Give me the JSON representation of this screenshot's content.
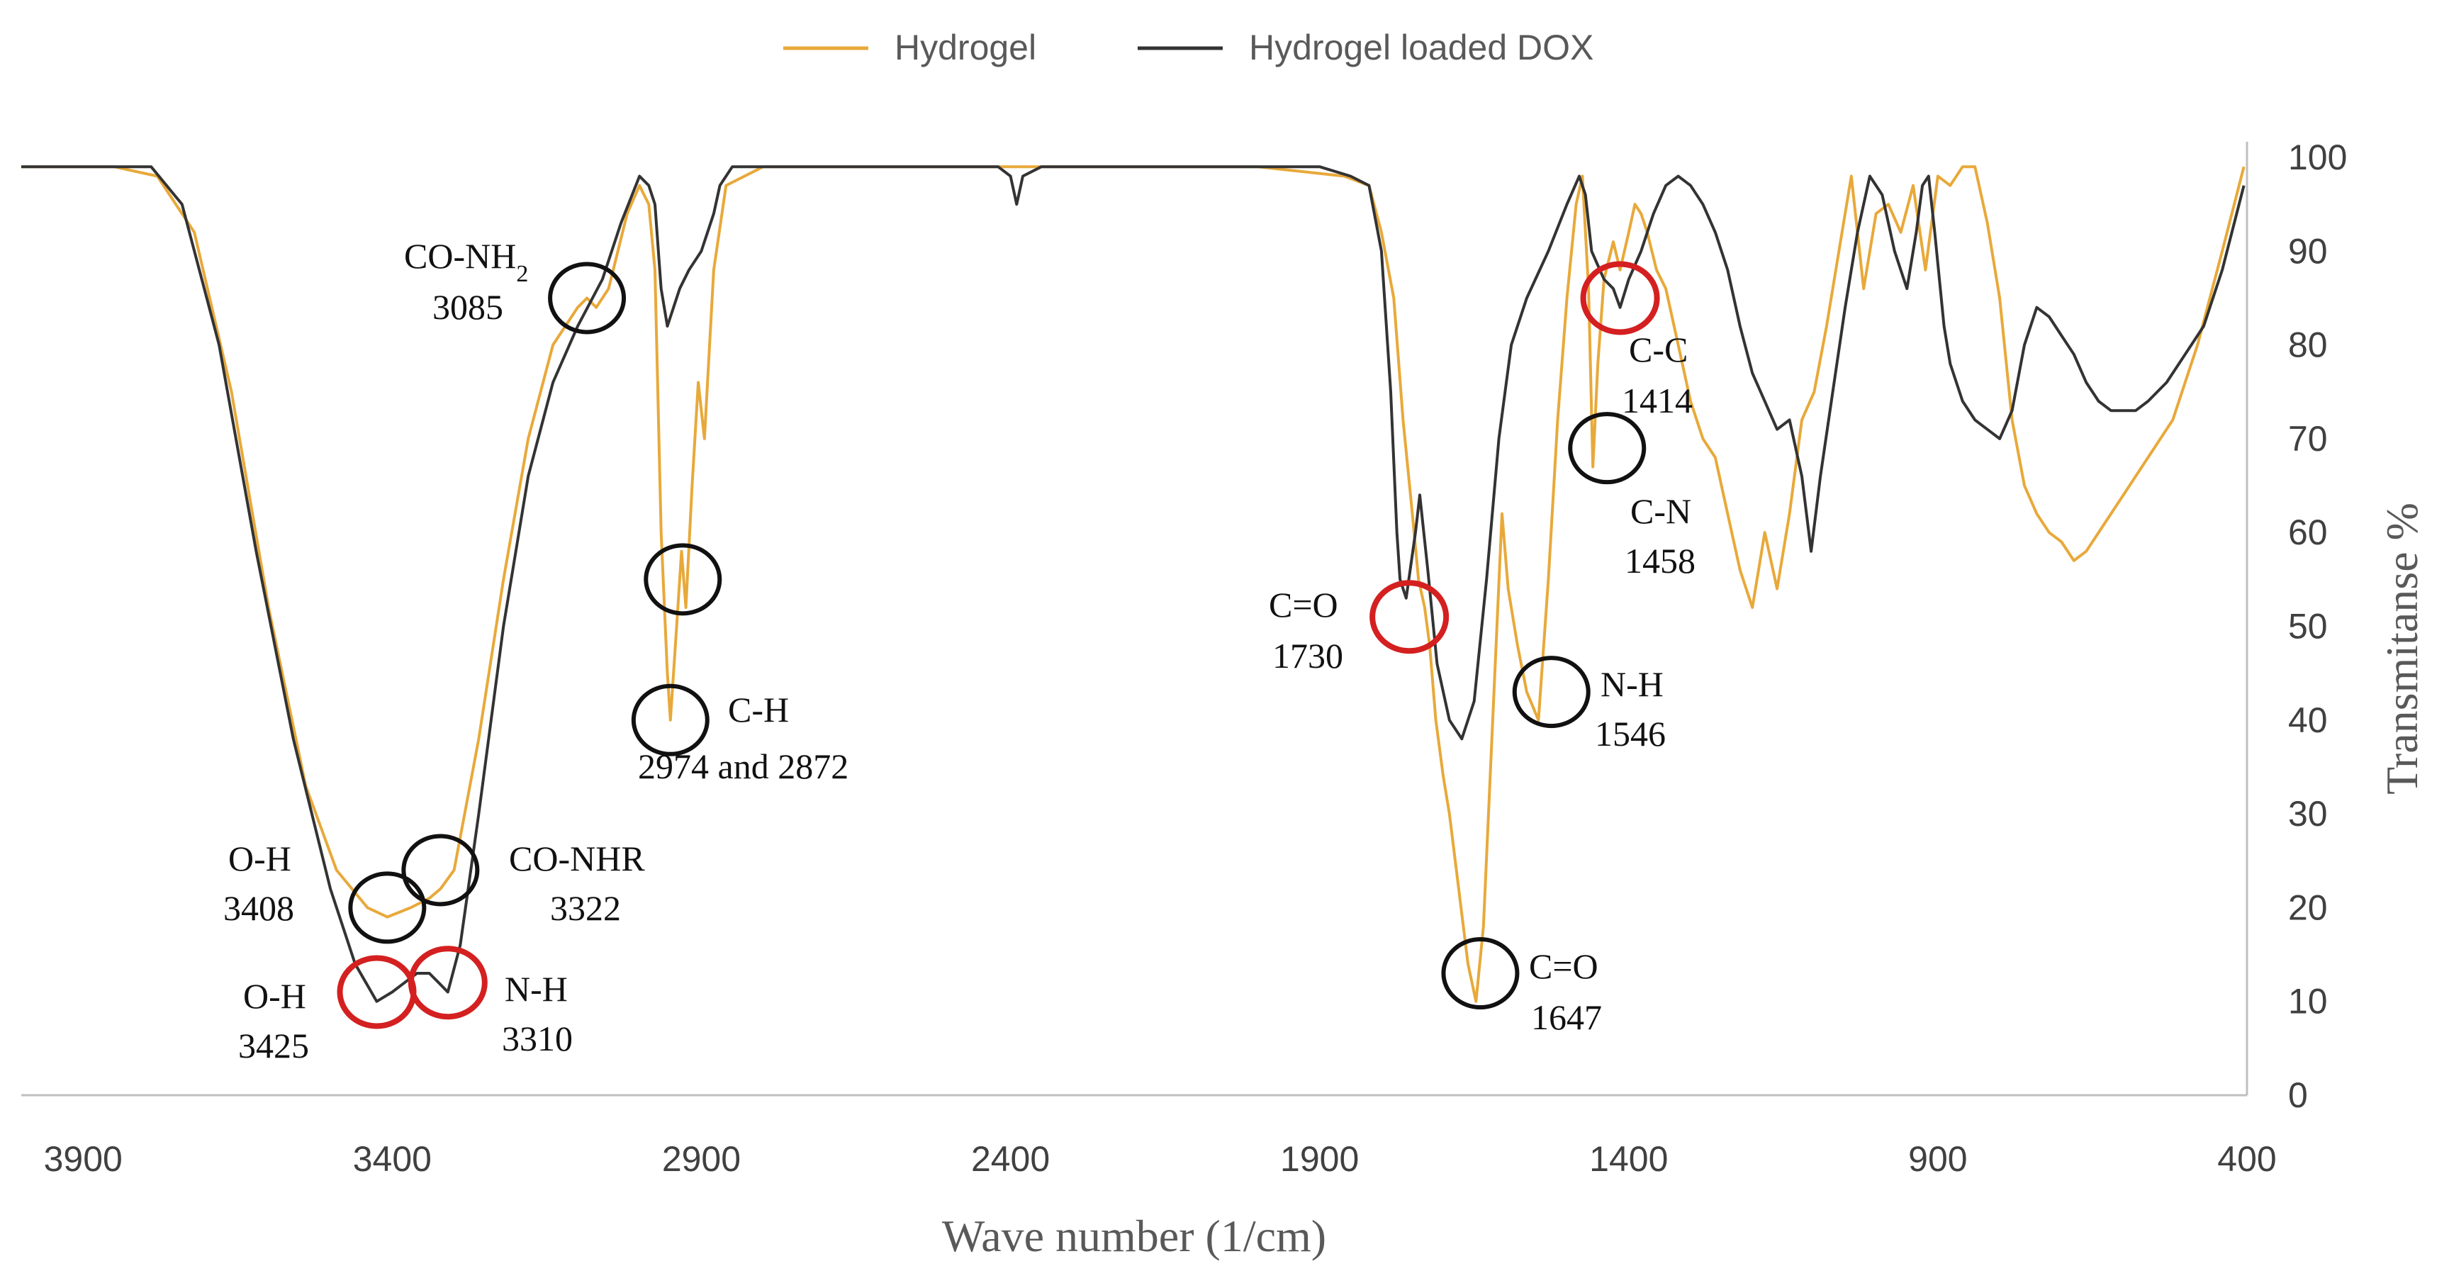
{
  "chart_data": {
    "type": "line",
    "title": "",
    "xlabel": "Wave number (1/cm)",
    "ylabel": "Transmitanse %",
    "xlim": [
      4000,
      400
    ],
    "ylim": [
      0,
      100
    ],
    "x_reversed": true,
    "x_ticks": [
      "3900",
      "3400",
      "2900",
      "2400",
      "1900",
      "1400",
      "900",
      "400"
    ],
    "y_ticks": [
      "0",
      "10",
      "20",
      "30",
      "40",
      "50",
      "60",
      "70",
      "80",
      "90",
      "100"
    ],
    "grid": false,
    "legend_position": "top",
    "colors": {
      "Hydrogel": "#E8A93A",
      "Hydrogel loaded DOX": "#333333",
      "red_circle": "#D42020",
      "black_circle": "#111111"
    },
    "series": [
      {
        "name": "Hydrogel",
        "points": [
          [
            4000,
            99
          ],
          [
            3850,
            99
          ],
          [
            3780,
            98
          ],
          [
            3720,
            92
          ],
          [
            3660,
            75
          ],
          [
            3600,
            52
          ],
          [
            3540,
            33
          ],
          [
            3490,
            24
          ],
          [
            3440,
            20
          ],
          [
            3408,
            19
          ],
          [
            3370,
            20
          ],
          [
            3340,
            21
          ],
          [
            3322,
            22
          ],
          [
            3300,
            24
          ],
          [
            3260,
            38
          ],
          [
            3220,
            55
          ],
          [
            3180,
            70
          ],
          [
            3140,
            80
          ],
          [
            3100,
            84
          ],
          [
            3085,
            85
          ],
          [
            3070,
            84
          ],
          [
            3050,
            86
          ],
          [
            3020,
            94
          ],
          [
            3000,
            97
          ],
          [
            2985,
            95
          ],
          [
            2975,
            88
          ],
          [
            2965,
            60
          ],
          [
            2955,
            45
          ],
          [
            2950,
            40
          ],
          [
            2940,
            50
          ],
          [
            2932,
            58
          ],
          [
            2925,
            52
          ],
          [
            2915,
            65
          ],
          [
            2905,
            76
          ],
          [
            2895,
            70
          ],
          [
            2880,
            88
          ],
          [
            2860,
            97
          ],
          [
            2800,
            99
          ],
          [
            2600,
            99
          ],
          [
            2400,
            99
          ],
          [
            2200,
            99
          ],
          [
            2000,
            99
          ],
          [
            1860,
            98
          ],
          [
            1820,
            97
          ],
          [
            1800,
            92
          ],
          [
            1780,
            85
          ],
          [
            1765,
            72
          ],
          [
            1750,
            62
          ],
          [
            1740,
            55
          ],
          [
            1730,
            52
          ],
          [
            1722,
            48
          ],
          [
            1712,
            40
          ],
          [
            1700,
            34
          ],
          [
            1690,
            30
          ],
          [
            1675,
            22
          ],
          [
            1660,
            14
          ],
          [
            1647,
            10
          ],
          [
            1635,
            18
          ],
          [
            1620,
            40
          ],
          [
            1605,
            62
          ],
          [
            1595,
            54
          ],
          [
            1580,
            48
          ],
          [
            1565,
            43
          ],
          [
            1546,
            40
          ],
          [
            1530,
            55
          ],
          [
            1515,
            72
          ],
          [
            1500,
            85
          ],
          [
            1485,
            95
          ],
          [
            1475,
            98
          ],
          [
            1465,
            86
          ],
          [
            1458,
            67
          ],
          [
            1450,
            78
          ],
          [
            1440,
            87
          ],
          [
            1425,
            91
          ],
          [
            1414,
            88
          ],
          [
            1400,
            92
          ],
          [
            1390,
            95
          ],
          [
            1380,
            94
          ],
          [
            1370,
            92
          ],
          [
            1355,
            88
          ],
          [
            1340,
            86
          ],
          [
            1320,
            80
          ],
          [
            1300,
            74
          ],
          [
            1280,
            70
          ],
          [
            1260,
            68
          ],
          [
            1240,
            62
          ],
          [
            1220,
            56
          ],
          [
            1200,
            52
          ],
          [
            1180,
            60
          ],
          [
            1160,
            54
          ],
          [
            1140,
            62
          ],
          [
            1120,
            72
          ],
          [
            1100,
            75
          ],
          [
            1080,
            82
          ],
          [
            1060,
            90
          ],
          [
            1040,
            98
          ],
          [
            1020,
            86
          ],
          [
            1000,
            94
          ],
          [
            980,
            95
          ],
          [
            960,
            92
          ],
          [
            940,
            97
          ],
          [
            920,
            88
          ],
          [
            900,
            98
          ],
          [
            880,
            97
          ],
          [
            860,
            99
          ],
          [
            840,
            99
          ],
          [
            820,
            93
          ],
          [
            800,
            85
          ],
          [
            780,
            72
          ],
          [
            760,
            65
          ],
          [
            740,
            62
          ],
          [
            720,
            60
          ],
          [
            700,
            59
          ],
          [
            680,
            57
          ],
          [
            660,
            58
          ],
          [
            630,
            61
          ],
          [
            600,
            64
          ],
          [
            560,
            68
          ],
          [
            520,
            72
          ],
          [
            480,
            80
          ],
          [
            440,
            90
          ],
          [
            405,
            99
          ]
        ]
      },
      {
        "name": "Hydrogel loaded DOX",
        "points": [
          [
            4000,
            99
          ],
          [
            3850,
            99
          ],
          [
            3790,
            99
          ],
          [
            3740,
            95
          ],
          [
            3680,
            80
          ],
          [
            3620,
            58
          ],
          [
            3560,
            38
          ],
          [
            3500,
            22
          ],
          [
            3460,
            14
          ],
          [
            3425,
            10
          ],
          [
            3400,
            11
          ],
          [
            3380,
            12
          ],
          [
            3360,
            13
          ],
          [
            3340,
            13
          ],
          [
            3325,
            12
          ],
          [
            3310,
            11
          ],
          [
            3290,
            16
          ],
          [
            3260,
            30
          ],
          [
            3220,
            50
          ],
          [
            3180,
            66
          ],
          [
            3140,
            76
          ],
          [
            3100,
            82
          ],
          [
            3060,
            87
          ],
          [
            3030,
            93
          ],
          [
            3000,
            98
          ],
          [
            2985,
            97
          ],
          [
            2975,
            95
          ],
          [
            2965,
            86
          ],
          [
            2955,
            82
          ],
          [
            2945,
            84
          ],
          [
            2935,
            86
          ],
          [
            2920,
            88
          ],
          [
            2900,
            90
          ],
          [
            2880,
            94
          ],
          [
            2870,
            97
          ],
          [
            2850,
            99
          ],
          [
            2600,
            99
          ],
          [
            2420,
            99
          ],
          [
            2400,
            98
          ],
          [
            2390,
            95
          ],
          [
            2380,
            98
          ],
          [
            2350,
            99
          ],
          [
            2100,
            99
          ],
          [
            1900,
            99
          ],
          [
            1850,
            98
          ],
          [
            1820,
            97
          ],
          [
            1800,
            90
          ],
          [
            1785,
            75
          ],
          [
            1775,
            60
          ],
          [
            1770,
            55
          ],
          [
            1760,
            53
          ],
          [
            1745,
            60
          ],
          [
            1738,
            64
          ],
          [
            1725,
            56
          ],
          [
            1710,
            46
          ],
          [
            1690,
            40
          ],
          [
            1670,
            38
          ],
          [
            1650,
            42
          ],
          [
            1630,
            55
          ],
          [
            1610,
            70
          ],
          [
            1590,
            80
          ],
          [
            1565,
            85
          ],
          [
            1530,
            90
          ],
          [
            1500,
            95
          ],
          [
            1480,
            98
          ],
          [
            1470,
            96
          ],
          [
            1460,
            90
          ],
          [
            1440,
            87
          ],
          [
            1425,
            86
          ],
          [
            1414,
            84
          ],
          [
            1400,
            87
          ],
          [
            1380,
            90
          ],
          [
            1360,
            94
          ],
          [
            1340,
            97
          ],
          [
            1320,
            98
          ],
          [
            1300,
            97
          ],
          [
            1280,
            95
          ],
          [
            1260,
            92
          ],
          [
            1240,
            88
          ],
          [
            1220,
            82
          ],
          [
            1200,
            77
          ],
          [
            1180,
            74
          ],
          [
            1160,
            71
          ],
          [
            1140,
            72
          ],
          [
            1120,
            66
          ],
          [
            1105,
            58
          ],
          [
            1090,
            66
          ],
          [
            1070,
            75
          ],
          [
            1050,
            84
          ],
          [
            1030,
            92
          ],
          [
            1010,
            98
          ],
          [
            990,
            96
          ],
          [
            970,
            90
          ],
          [
            950,
            86
          ],
          [
            935,
            92
          ],
          [
            925,
            97
          ],
          [
            915,
            98
          ],
          [
            905,
            92
          ],
          [
            890,
            82
          ],
          [
            880,
            78
          ],
          [
            860,
            74
          ],
          [
            840,
            72
          ],
          [
            820,
            71
          ],
          [
            800,
            70
          ],
          [
            780,
            73
          ],
          [
            760,
            80
          ],
          [
            740,
            84
          ],
          [
            720,
            83
          ],
          [
            700,
            81
          ],
          [
            680,
            79
          ],
          [
            660,
            76
          ],
          [
            640,
            74
          ],
          [
            620,
            73
          ],
          [
            600,
            73
          ],
          [
            580,
            73
          ],
          [
            560,
            74
          ],
          [
            530,
            76
          ],
          [
            500,
            79
          ],
          [
            470,
            82
          ],
          [
            440,
            88
          ],
          [
            405,
            97
          ]
        ]
      }
    ],
    "annotations": [
      {
        "label": "CO-NH",
        "sub": "2",
        "value": "3085",
        "x": 3085,
        "y": 85,
        "circle": "black"
      },
      {
        "label": "C-H",
        "value": "2974 and 2872",
        "x": 2950,
        "y": 40,
        "circle": "black"
      },
      {
        "label": "",
        "value": "",
        "x": 2930,
        "y": 55,
        "circle": "black"
      },
      {
        "label": "O-H",
        "value": "3408",
        "x": 3408,
        "y": 20,
        "circle": "black"
      },
      {
        "label": "CO-NHR",
        "value": "3322",
        "x": 3322,
        "y": 24,
        "circle": "black"
      },
      {
        "label": "O-H",
        "value": "3425",
        "x": 3425,
        "y": 11,
        "circle": "red"
      },
      {
        "label": "N-H",
        "value": "3310",
        "x": 3310,
        "y": 12,
        "circle": "red"
      },
      {
        "label": "C=O",
        "value": "1730",
        "x": 1755,
        "y": 51,
        "circle": "red"
      },
      {
        "label": "C=O",
        "value": "1647",
        "x": 1640,
        "y": 13,
        "circle": "black"
      },
      {
        "label": "N-H",
        "value": "1546",
        "x": 1525,
        "y": 43,
        "circle": "black"
      },
      {
        "label": "C-C",
        "value": "1414",
        "x": 1414,
        "y": 85,
        "circle": "red"
      },
      {
        "label": "C-N",
        "value": "1458",
        "x": 1435,
        "y": 69,
        "circle": "black"
      }
    ]
  }
}
